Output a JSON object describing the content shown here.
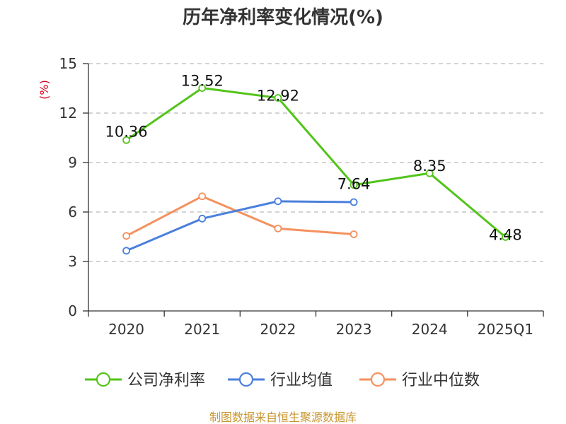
{
  "chart_data": {
    "type": "line",
    "title": "历年净利率变化情况(%)",
    "ylabel": "(%)",
    "xlabel": "",
    "categories": [
      "2020",
      "2021",
      "2022",
      "2023",
      "2024",
      "2025Q1"
    ],
    "yticks": [
      "0",
      "3",
      "6",
      "9",
      "12",
      "15"
    ],
    "ylim": [
      0,
      15
    ],
    "grid": true,
    "legend_position": "bottom",
    "series": [
      {
        "name": "公司净利率",
        "color": "#52c41a",
        "values": [
          10.36,
          13.52,
          12.92,
          7.64,
          8.35,
          4.48
        ],
        "labels": [
          "10.36",
          "13.52",
          "12.92",
          "7.64",
          "8.35",
          "4.48"
        ]
      },
      {
        "name": "行业均值",
        "color": "#4a7fdc",
        "values": [
          3.65,
          5.6,
          6.65,
          6.6,
          null,
          null
        ]
      },
      {
        "name": "行业中位数",
        "color": "#f4915e",
        "values": [
          4.55,
          6.95,
          5.0,
          4.65,
          null,
          null
        ]
      }
    ]
  },
  "footer": "制图数据来自恒生聚源数据库"
}
